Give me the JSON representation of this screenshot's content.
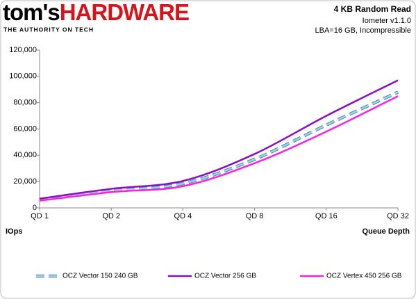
{
  "logo": {
    "brand": "tom's",
    "name": "HARDWARE",
    "tagline": "THE AUTHORITY ON TECH"
  },
  "chart_data": {
    "type": "line",
    "title": "4 KB Random Read",
    "subtitle": [
      "Iometer v1.1.0",
      "LBA=16 GB, Incompressible"
    ],
    "y_label": "IOps",
    "x_label": "Queue Depth",
    "categories": [
      "QD 1",
      "QD 2",
      "QD 4",
      "QD 8",
      "QD 16",
      "QD 32"
    ],
    "series": [
      {
        "name": "OCZ Vector 150 240 GB",
        "color": "#9fd3e6",
        "dashed": true,
        "values": [
          6500,
          13000,
          18500,
          37000,
          63000,
          88000
        ]
      },
      {
        "name": "OCZ Vector 256 GB",
        "color": "#8a0fc4",
        "dashed": false,
        "values": [
          7000,
          14500,
          20500,
          41000,
          70000,
          97000
        ]
      },
      {
        "name": "OCZ Vertex 450 256 GB",
        "color": "#ff1ee6",
        "dashed": false,
        "values": [
          5500,
          12000,
          16500,
          34000,
          58000,
          85000
        ]
      }
    ],
    "ylim": [
      0,
      120000
    ],
    "yticks": [
      0,
      {
        "value": 20000,
        "label": "20,000"
      },
      {
        "value": 40000,
        "label": "40,000"
      },
      {
        "value": 60000,
        "label": "60,000"
      },
      {
        "value": 80000,
        "label": "80,000"
      },
      {
        "value": 100000,
        "label": "100,000"
      },
      {
        "value": 120000,
        "label": "120,000"
      }
    ],
    "grid": false,
    "legend": "bottom"
  }
}
